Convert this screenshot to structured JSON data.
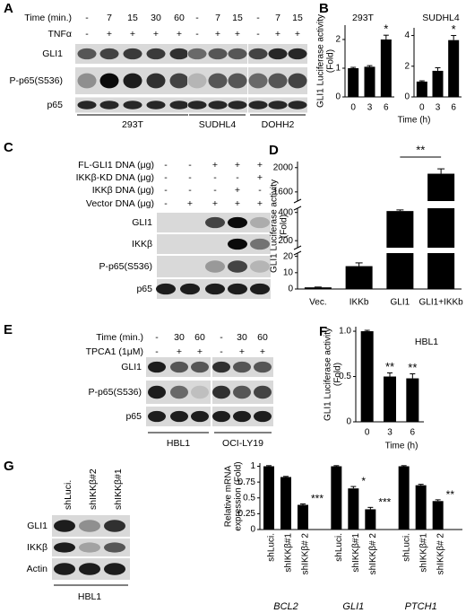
{
  "panels": {
    "letters": [
      "A",
      "B",
      "C",
      "D",
      "E",
      "F",
      "G"
    ]
  },
  "blot_A": {
    "time_label": "Time (min.)",
    "times": [
      "-",
      "7",
      "15",
      "30",
      "60",
      "-",
      "7",
      "15",
      "-",
      "7",
      "15"
    ],
    "treat_label": "TNFα",
    "treat": [
      "-",
      "+",
      "+",
      "+",
      "+",
      "-",
      "+",
      "+",
      "-",
      "+",
      "+"
    ],
    "rows": [
      "GLI1",
      "P-p65(S536)",
      "p65"
    ],
    "cells": [
      "293T",
      "SUDHL4",
      "DOHH2"
    ]
  },
  "blot_C": {
    "design": [
      {
        "label": "FL-GLI1 DNA (μg)",
        "signs": [
          "-",
          "-",
          "+",
          "+",
          "+"
        ]
      },
      {
        "label": "IKKβ-KD DNA (μg)",
        "signs": [
          "-",
          "-",
          "-",
          "-",
          "+"
        ]
      },
      {
        "label": "IKKβ DNA (μg)",
        "signs": [
          "-",
          "-",
          "-",
          "+",
          "-"
        ]
      },
      {
        "label": "Vector DNA (μg)",
        "signs": [
          "-",
          "+",
          "+",
          "+",
          "+"
        ]
      }
    ],
    "rows": [
      "GLI1",
      "IKKβ",
      "P-p65(S536)",
      "p65"
    ]
  },
  "blot_E": {
    "time_label": "Time (min.)",
    "times": [
      "-",
      "30",
      "60",
      "-",
      "30",
      "60"
    ],
    "treat_label": "TPCA1 (1μM)",
    "treat": [
      "-",
      "+",
      "+",
      "-",
      "+",
      "+"
    ],
    "rows": [
      "GLI1",
      "P-p65(S536)",
      "p65"
    ],
    "cells": [
      "HBL1",
      "OCI-LY19"
    ]
  },
  "blot_G": {
    "lanes": [
      "shLuci.",
      "shIKKβ#2",
      "shIKKβ#1"
    ],
    "rows": [
      "GLI1",
      "IKKβ",
      "Actin"
    ],
    "cells": [
      "HBL1"
    ]
  },
  "chart_data": [
    {
      "type": "bar",
      "title": "293T",
      "ylabel": [
        "GLI1 Luciferase activity",
        "(Fold)"
      ],
      "categories": [
        "0",
        "3",
        "6"
      ],
      "values": [
        1,
        1.05,
        2
      ],
      "errors": [
        0.03,
        0.04,
        0.15
      ],
      "stars": [
        null,
        null,
        "*"
      ],
      "color": "#000000",
      "ylim": [
        0,
        2.5
      ],
      "yticks": [
        0,
        1,
        2
      ]
    },
    {
      "type": "bar",
      "title": "SUDHL4",
      "xlabel": "Time (h)",
      "categories": [
        "0",
        "3",
        "6"
      ],
      "values": [
        1,
        1.7,
        3.7
      ],
      "errors": [
        0.05,
        0.2,
        0.3
      ],
      "stars": [
        null,
        null,
        "*"
      ],
      "color": "#000000",
      "ylim": [
        0,
        4.5
      ],
      "yticks": [
        0,
        2,
        4
      ]
    },
    {
      "type": "broken_bar",
      "ylabel": [
        "GLI1 Luciferase activity",
        "(Fold)"
      ],
      "categories": [
        "Vec.",
        "IKKb",
        "GLI1",
        "GLI1+IKKb"
      ],
      "values": [
        1,
        14,
        410,
        1900
      ],
      "errors": [
        0.2,
        2,
        8,
        80
      ],
      "stars": [
        null,
        null,
        null,
        "**"
      ],
      "color": "#000000",
      "segments": [
        {
          "ylim": [
            0,
            22
          ],
          "yticks": [
            0,
            10,
            20
          ]
        },
        {
          "ylim": [
            150,
            430
          ],
          "yticks": [
            200,
            400
          ]
        },
        {
          "ylim": [
            1450,
            2100
          ],
          "yticks": [
            1600,
            2000
          ]
        }
      ]
    },
    {
      "type": "bar",
      "title": "HBL1",
      "ylabel": [
        "GLI1 Luciferase activity",
        "(Fold)"
      ],
      "xlabel": "Time (h)",
      "categories": [
        "0",
        "3",
        "6"
      ],
      "values": [
        1,
        0.5,
        0.48
      ],
      "errors": [
        0.01,
        0.04,
        0.05
      ],
      "stars": [
        null,
        "**",
        "**"
      ],
      "color": "#000000",
      "ylim": [
        0,
        1.05
      ],
      "yticks": [
        0,
        0.5,
        {
          "value": 1,
          "label": "1.0"
        }
      ]
    },
    {
      "type": "grouped_bar",
      "ylabel": [
        "Relative mRNA",
        "expression (Fold)"
      ],
      "categories": [
        "shLuci.",
        "shIKKβ#1",
        "shIKKβ# 2"
      ],
      "color": "#000000",
      "series": [
        {
          "name": "BCL2",
          "values": [
            1,
            0.83,
            0.39
          ],
          "errors": [
            0.01,
            0.01,
            0.015
          ],
          "stars": [
            null,
            null,
            "***"
          ]
        },
        {
          "name": "GLI1",
          "values": [
            1,
            0.65,
            0.32
          ],
          "errors": [
            0.01,
            0.03,
            0.03
          ],
          "stars": [
            null,
            "*",
            "***"
          ]
        },
        {
          "name": "PTCH1",
          "values": [
            1,
            0.7,
            0.45
          ],
          "errors": [
            0.01,
            0.015,
            0.02
          ],
          "stars": [
            null,
            null,
            "**"
          ]
        }
      ],
      "ylim": [
        0,
        1.05
      ],
      "yticks": [
        0,
        0.25,
        0.5,
        0.75,
        1
      ]
    }
  ]
}
